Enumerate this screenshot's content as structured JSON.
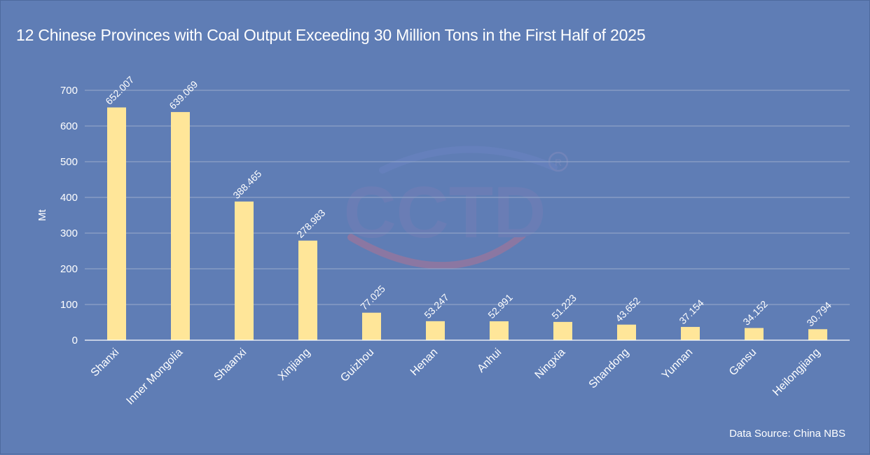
{
  "chart_data": {
    "type": "bar",
    "title": "12 Chinese Provinces with Coal Output Exceeding 30 Million Tons in the First Half of 2025",
    "xlabel": "",
    "ylabel": "Mt",
    "ylim": [
      0,
      700
    ],
    "yticks": [
      0,
      100,
      200,
      300,
      400,
      500,
      600,
      700
    ],
    "grid": true,
    "categories": [
      "Shanxi",
      "Inner Mongolia",
      "Shaanxi",
      "Xinjiang",
      "Guizhou",
      "Henan",
      "Anhui",
      "Ningxia",
      "Shandong",
      "Yunnan",
      "Gansu",
      "Heilongjiang"
    ],
    "values": [
      652.007,
      639.069,
      388.465,
      278.983,
      77.025,
      53.247,
      52.991,
      51.223,
      43.652,
      37.154,
      34.152,
      30.794
    ],
    "data_labels": [
      "652.007",
      "639.069",
      "388.465",
      "278.983",
      "77.025",
      "53.247",
      "52.991",
      "51.223",
      "43.652",
      "37.154",
      "34.152",
      "30.794"
    ],
    "source": "Data Source: China NBS"
  },
  "watermark": {
    "text": "CCTD",
    "registered_mark": "R"
  },
  "colors": {
    "background": "#5f7db5",
    "bar": "#ffe699",
    "grid": "#8fa3c8",
    "axis": "#ffffff",
    "text": "#ffffff"
  }
}
